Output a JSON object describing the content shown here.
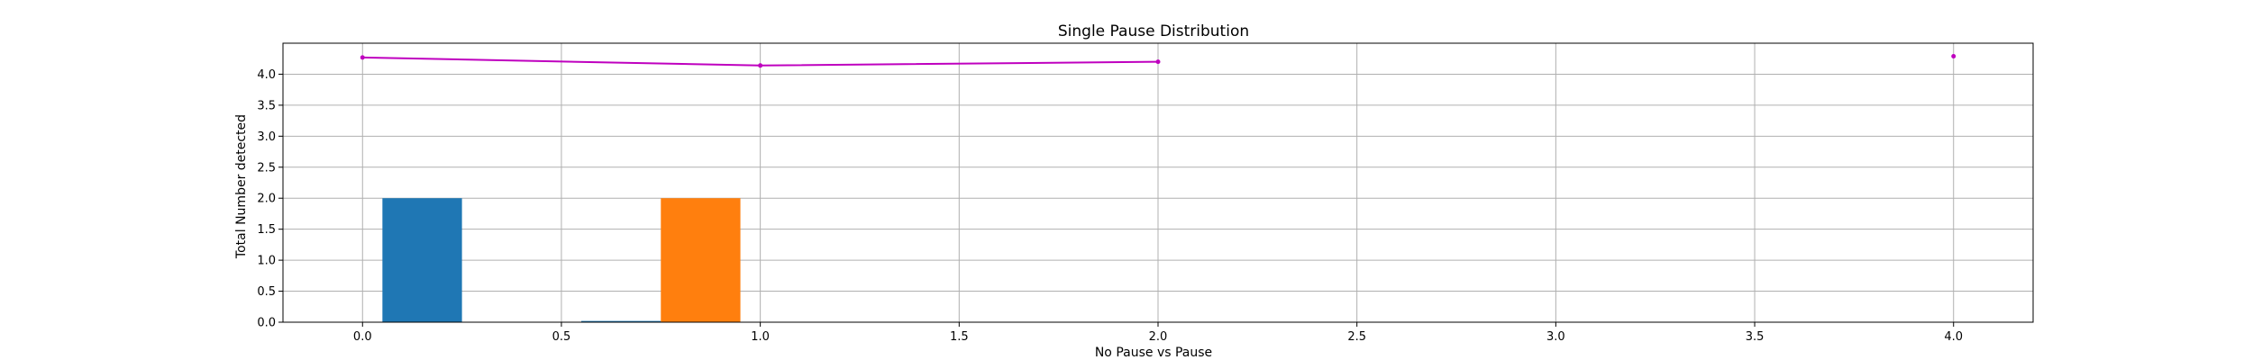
{
  "chart_data": {
    "type": "bar",
    "title": "Single Pause Distribution",
    "xlabel": "No Pause vs Pause",
    "ylabel": "Total Number detected",
    "xlim": [
      -0.2,
      4.2
    ],
    "ylim": [
      0.0,
      4.5
    ],
    "xticks": [
      "0.0",
      "0.5",
      "1.0",
      "1.5",
      "2.0",
      "2.5",
      "3.0",
      "3.5",
      "4.0"
    ],
    "xtick_values": [
      0.0,
      0.5,
      1.0,
      1.5,
      2.0,
      2.5,
      3.0,
      3.5,
      4.0
    ],
    "yticks": [
      "0.0",
      "0.5",
      "1.0",
      "1.5",
      "2.0",
      "2.5",
      "3.0",
      "3.5",
      "4.0"
    ],
    "ytick_values": [
      0.0,
      0.5,
      1.0,
      1.5,
      2.0,
      2.5,
      3.0,
      3.5,
      4.0
    ],
    "grid": true,
    "bars": [
      {
        "x_start": 0.05,
        "x_end": 0.25,
        "value": 2.0,
        "color": "#1f77b4"
      },
      {
        "x_start": 0.55,
        "x_end": 0.75,
        "value": 0.02,
        "color": "#1f77b4"
      },
      {
        "x_start": 0.75,
        "x_end": 0.95,
        "value": 2.0,
        "color": "#ff7f0e"
      }
    ],
    "line": {
      "color": "#bf00bf",
      "segments": [
        [
          [
            0.0,
            4.27
          ],
          [
            1.0,
            4.14
          ],
          [
            2.0,
            4.2
          ]
        ],
        [
          [
            4.0,
            4.29
          ]
        ]
      ]
    }
  }
}
